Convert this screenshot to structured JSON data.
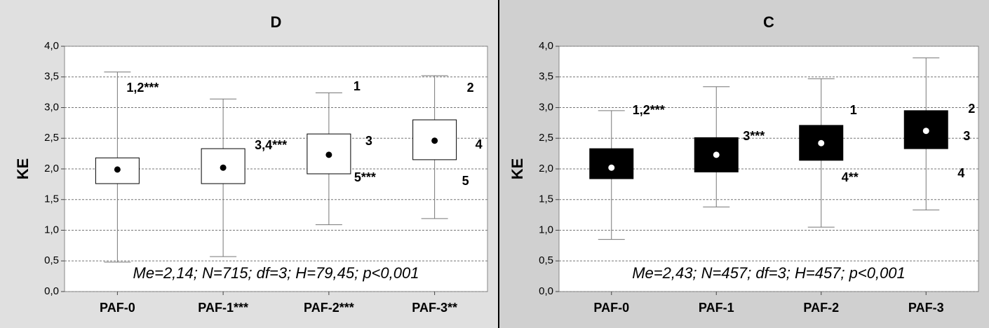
{
  "chart_data": [
    {
      "type": "box",
      "title": "D",
      "ylabel": "KE",
      "categories": [
        "PAF-0",
        "PAF-1***",
        "PAF-2***",
        "PAF-3**"
      ],
      "whisker_high": [
        3.58,
        3.14,
        3.24,
        3.52
      ],
      "q3": [
        2.18,
        2.33,
        2.57,
        2.8
      ],
      "median": [
        1.99,
        2.02,
        2.23,
        2.46
      ],
      "q1": [
        1.76,
        1.76,
        1.92,
        2.15
      ],
      "whisker_low": [
        0.48,
        0.57,
        1.09,
        1.19
      ],
      "annotations": [
        [
          "1,2***"
        ],
        [
          "3,4***"
        ],
        [
          "1",
          "3",
          "5***"
        ],
        [
          "2",
          "4",
          "5"
        ]
      ],
      "stats": "Me=2,14; N=715; df=3; H=79,45; p<0,001",
      "box_color": "#ffffff",
      "median_color": "#000000",
      "background": "#e0e0e0",
      "ylim": [
        0,
        4
      ],
      "yticks": [
        {
          "value": 0,
          "label": "0,0"
        },
        {
          "value": 0.5,
          "label": "0,5"
        },
        {
          "value": 1,
          "label": "1,0"
        },
        {
          "value": 1.5,
          "label": "1,5"
        },
        {
          "value": 2,
          "label": "2,0"
        },
        {
          "value": 2.5,
          "label": "2,5"
        },
        {
          "value": 3,
          "label": "3,0"
        },
        {
          "value": 3.5,
          "label": "3,5"
        },
        {
          "value": 4,
          "label": "4,0"
        }
      ],
      "grid": true
    },
    {
      "type": "box",
      "title": "C",
      "ylabel": "KE",
      "categories": [
        "PAF-0",
        "PAF-1",
        "PAF-2",
        "PAF-3"
      ],
      "whisker_high": [
        2.95,
        3.34,
        3.47,
        3.81
      ],
      "q3": [
        2.33,
        2.51,
        2.71,
        2.95
      ],
      "median": [
        2.02,
        2.23,
        2.42,
        2.62
      ],
      "q1": [
        1.84,
        1.95,
        2.14,
        2.33
      ],
      "whisker_low": [
        0.85,
        1.38,
        1.05,
        1.33
      ],
      "annotations": [
        [
          "1,2***"
        ],
        [
          "3***"
        ],
        [
          "1",
          "4**"
        ],
        [
          "2",
          "3",
          "4"
        ]
      ],
      "stats": "Me=2,43; N=457; df=3; H=457; p<0,001",
      "box_color": "#000000",
      "median_color": "#ffffff",
      "background": "#d0d0d0",
      "ylim": [
        0,
        4
      ],
      "yticks": [
        {
          "value": 0,
          "label": "0,0"
        },
        {
          "value": 0.5,
          "label": "0,5"
        },
        {
          "value": 1,
          "label": "1,0"
        },
        {
          "value": 1.5,
          "label": "1,5"
        },
        {
          "value": 2,
          "label": "2,0"
        },
        {
          "value": 2.5,
          "label": "2,5"
        },
        {
          "value": 3,
          "label": "3,0"
        },
        {
          "value": 3.5,
          "label": "3,5"
        },
        {
          "value": 4,
          "label": "4,0"
        }
      ],
      "grid": true
    }
  ]
}
